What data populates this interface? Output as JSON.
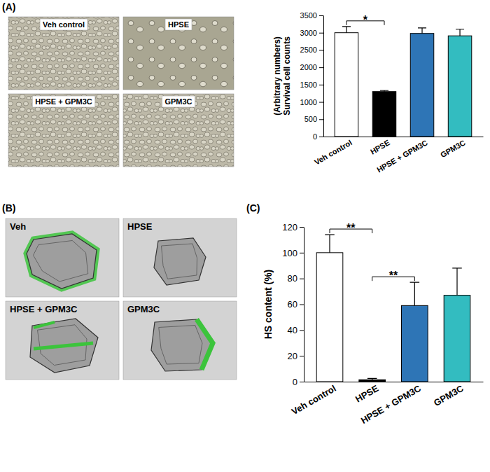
{
  "panel_letters": [
    "(A)",
    "(B)",
    "(C)"
  ],
  "micrographs": [
    {
      "labels": [
        "Veh control",
        "HPSE",
        "HPSE + GPM3C",
        "GPM3C"
      ]
    },
    {
      "labels": [
        "Veh",
        "HPSE",
        "HPSE + GPM3C",
        "GPM3C"
      ]
    }
  ],
  "chart_data": [
    {
      "type": "bar",
      "ylabel": [
        "Survival cell counts",
        "(Arbitrary numbers)"
      ],
      "categories": [
        "Veh control",
        "HPSE",
        "HPSE + GPM3C",
        "GPM3C"
      ],
      "values": [
        3000,
        1300,
        2980,
        2910
      ],
      "errors": [
        180,
        30,
        160,
        190
      ],
      "colors": [
        "#ffffff",
        "#000000",
        "#2e75b6",
        "#33bcc0"
      ],
      "ylim": [
        0,
        3500
      ],
      "yticks": [
        0,
        500,
        1000,
        1500,
        2000,
        2500,
        3000,
        3500
      ],
      "grid": false,
      "annotations": [
        {
          "between": [
            "Veh control",
            "HPSE"
          ],
          "text": "*"
        }
      ]
    },
    {
      "type": "bar",
      "ylabel": [
        "HS content (%)"
      ],
      "categories": [
        "Veh control",
        "HPSE",
        "HPSE + GPM3C",
        "GPM3C"
      ],
      "values": [
        100,
        1.5,
        59,
        67
      ],
      "errors": [
        14,
        1,
        18,
        21
      ],
      "colors": [
        "#ffffff",
        "#000000",
        "#2e75b6",
        "#33bcc0"
      ],
      "ylim": [
        0,
        120
      ],
      "yticks": [
        0,
        20,
        40,
        60,
        80,
        100,
        120
      ],
      "grid": false,
      "annotations": [
        {
          "between": [
            "Veh control",
            "HPSE"
          ],
          "text": "**"
        },
        {
          "between": [
            "HPSE",
            "HPSE + GPM3C"
          ],
          "text": "**"
        }
      ]
    }
  ]
}
